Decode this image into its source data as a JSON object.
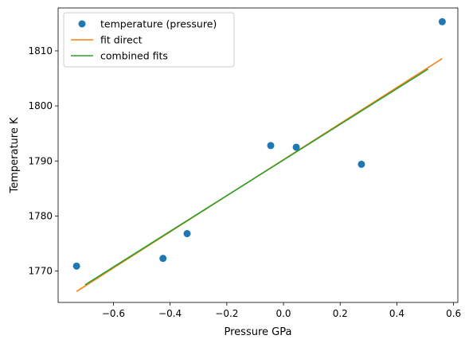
{
  "chart_data": {
    "type": "scatter",
    "title": "",
    "xlabel": "Pressure GPa",
    "ylabel": "Temperature K",
    "xlim": [
      -0.795,
      0.615
    ],
    "ylim": [
      1764.3,
      1817.8
    ],
    "x_ticks": [
      -0.6,
      -0.4,
      -0.2,
      0.0,
      0.2,
      0.4,
      0.6
    ],
    "x_tick_labels": [
      "−0.6",
      "−0.4",
      "−0.2",
      "0.0",
      "0.2",
      "0.4",
      "0.6"
    ],
    "y_ticks": [
      1770,
      1780,
      1790,
      1800,
      1810
    ],
    "y_tick_labels": [
      "1770",
      "1780",
      "1790",
      "1800",
      "1810"
    ],
    "grid": false,
    "legend_position": "top-left",
    "series": [
      {
        "name": "temperature (pressure)",
        "kind": "scatter",
        "color": "#1f77b4",
        "x": [
          -0.73,
          -0.425,
          -0.34,
          -0.045,
          0.045,
          0.275,
          0.56
        ],
        "y": [
          1770.9,
          1772.3,
          1776.8,
          1792.8,
          1792.5,
          1789.4,
          1815.3
        ]
      },
      {
        "name": "fit direct",
        "kind": "line",
        "color": "#ff7f0e",
        "x": [
          -0.73,
          0.56
        ],
        "y": [
          1766.3,
          1808.6
        ]
      },
      {
        "name": "combined fits",
        "kind": "line",
        "color": "#2ca02c",
        "x": [
          -0.7,
          0.51
        ],
        "y": [
          1767.5,
          1806.7
        ]
      }
    ]
  }
}
